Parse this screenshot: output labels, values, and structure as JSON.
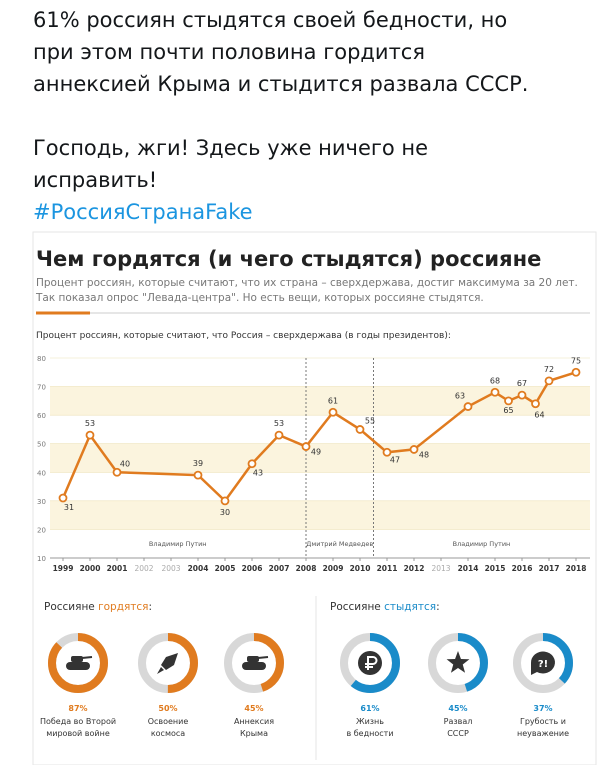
{
  "tweet": {
    "text_lines": [
      "61% россиян стыдятся своей бедности, но",
      "при этом почти половина гордится",
      "аннексией Крыма и стыдится развала СССР."
    ],
    "text_lines_2": [
      "Господь, жги! Здесь уже ничего не",
      "исправить!"
    ],
    "hashtag": "#РоссияСтранаFake"
  },
  "infographic": {
    "title": "Чем гордятся (и чего стыдятся) россияне",
    "subtitle": [
      "Процент россиян, которые считают, что их страна – сверхдержава, достиг максимума за 20 лет.",
      "Так показал опрос \"Левада-центра\". Но есть вещи, которых россияне стыдятся."
    ],
    "proud": {
      "heading": "Россияне ",
      "heading_hl": "гордятся",
      "heading_end": ":",
      "color": "#e07b1f",
      "values": [
        87,
        50,
        45
      ],
      "value_labels": [
        "87%",
        "50%",
        "45%"
      ],
      "labels": [
        [
          "Победа во Второй",
          "мировой войне"
        ],
        [
          "Освоение",
          "космоса"
        ],
        [
          "Аннексия",
          "Крыма"
        ]
      ]
    },
    "ashamed": {
      "heading": "Россияне ",
      "heading_hl": "стыдятся",
      "heading_end": ":",
      "color": "#1a8bc9",
      "values": [
        61,
        45,
        37
      ],
      "value_labels": [
        "61%",
        "45%",
        "37%"
      ],
      "labels": [
        [
          "Жизнь",
          "в бедности"
        ],
        [
          "Развал",
          "СССР"
        ],
        [
          "Грубость и",
          "неуважение"
        ]
      ],
      "icon_text": "?!"
    }
  },
  "chart_data": {
    "type": "line",
    "title": "Процент россиян, которые считают, что Россия  – сверхдержава (в годы президентов):",
    "x": [
      1999,
      2000,
      2001,
      2004,
      2005,
      2006,
      2007,
      2008,
      2009,
      2010,
      2011,
      2012,
      2014,
      2015,
      2015.5,
      2016,
      2016.5,
      2017,
      2018
    ],
    "series": [
      {
        "name": "Россия – сверхдержава",
        "color": "#e07b1f",
        "values": [
          31,
          53,
          40,
          39,
          30,
          43,
          53,
          49,
          61,
          55,
          47,
          48,
          63,
          68,
          65,
          67,
          64,
          72,
          75
        ]
      }
    ],
    "xlim": [
      1998.5,
      2018.5
    ],
    "xticks": [
      1999,
      2000,
      2001,
      2002,
      2003,
      2004,
      2005,
      2006,
      2007,
      2008,
      2009,
      2010,
      2011,
      2012,
      2013,
      2014,
      2015,
      2016,
      2017,
      2018
    ],
    "xticks_muted": [
      2002,
      2003,
      2013
    ],
    "ylim": [
      10,
      80
    ],
    "yticks": [
      10,
      20,
      30,
      40,
      50,
      60,
      70,
      80
    ],
    "bands": true,
    "period_dividers": [
      2008,
      2010.5
    ],
    "period_labels": [
      "Владимир Путин",
      "Дмитрий Медведев",
      "Владимир Путин"
    ]
  }
}
